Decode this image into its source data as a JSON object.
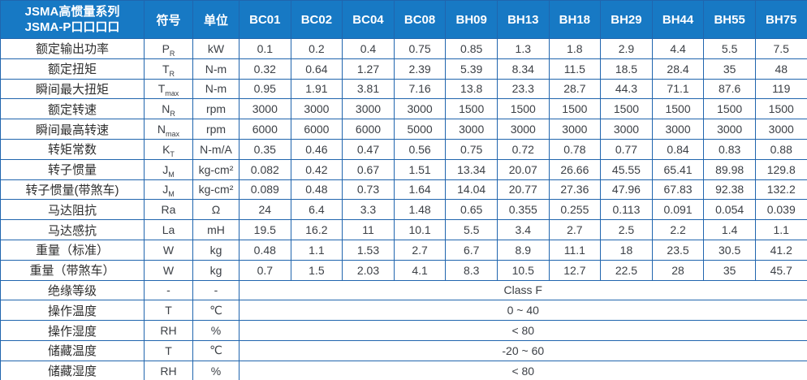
{
  "header": {
    "title_line1": "JSMA高惯量系列",
    "title_line2": "JSMA-P口口口口",
    "symbol_col": "符号",
    "unit_col": "单位",
    "models": [
      "BC01",
      "BC02",
      "BC04",
      "BC08",
      "BH09",
      "BH13",
      "BH18",
      "BH29",
      "BH44",
      "BH55",
      "BH75"
    ]
  },
  "rows": [
    {
      "label": "额定输出功率",
      "sym": "P",
      "sub": "R",
      "unit": "kW",
      "values": [
        "0.1",
        "0.2",
        "0.4",
        "0.75",
        "0.85",
        "1.3",
        "1.8",
        "2.9",
        "4.4",
        "5.5",
        "7.5"
      ]
    },
    {
      "label": "额定扭矩",
      "sym": "T",
      "sub": "R",
      "unit": "N-m",
      "values": [
        "0.32",
        "0.64",
        "1.27",
        "2.39",
        "5.39",
        "8.34",
        "11.5",
        "18.5",
        "28.4",
        "35",
        "48"
      ]
    },
    {
      "label": "瞬间最大扭矩",
      "sym": "T",
      "sub": "max",
      "unit": "N-m",
      "values": [
        "0.95",
        "1.91",
        "3.81",
        "7.16",
        "13.8",
        "23.3",
        "28.7",
        "44.3",
        "71.1",
        "87.6",
        "119"
      ]
    },
    {
      "label": "额定转速",
      "sym": "N",
      "sub": "R",
      "unit": "rpm",
      "values": [
        "3000",
        "3000",
        "3000",
        "3000",
        "1500",
        "1500",
        "1500",
        "1500",
        "1500",
        "1500",
        "1500"
      ]
    },
    {
      "label": "瞬间最高转速",
      "sym": "N",
      "sub": "max",
      "unit": "rpm",
      "values": [
        "6000",
        "6000",
        "6000",
        "5000",
        "3000",
        "3000",
        "3000",
        "3000",
        "3000",
        "3000",
        "3000"
      ]
    },
    {
      "label": "转矩常数",
      "sym": "K",
      "sub": "T",
      "unit": "N-m/A",
      "values": [
        "0.35",
        "0.46",
        "0.47",
        "0.56",
        "0.75",
        "0.72",
        "0.78",
        "0.77",
        "0.84",
        "0.83",
        "0.88"
      ]
    },
    {
      "label": "转子惯量",
      "sym": "J",
      "sub": "M",
      "unit": "kg-cm²",
      "values": [
        "0.082",
        "0.42",
        "0.67",
        "1.51",
        "13.34",
        "20.07",
        "26.66",
        "45.55",
        "65.41",
        "89.98",
        "129.8"
      ]
    },
    {
      "label": "转子惯量(带煞车)",
      "sym": "J",
      "sub": "M",
      "unit": "kg-cm²",
      "values": [
        "0.089",
        "0.48",
        "0.73",
        "1.64",
        "14.04",
        "20.77",
        "27.36",
        "47.96",
        "67.83",
        "92.38",
        "132.2"
      ]
    },
    {
      "label": "马达阻抗",
      "sym": "Ra",
      "sub": "",
      "unit": "Ω",
      "values": [
        "24",
        "6.4",
        "3.3",
        "1.48",
        "0.65",
        "0.355",
        "0.255",
        "0.113",
        "0.091",
        "0.054",
        "0.039"
      ]
    },
    {
      "label": "马达感抗",
      "sym": "La",
      "sub": "",
      "unit": "mH",
      "values": [
        "19.5",
        "16.2",
        "11",
        "10.1",
        "5.5",
        "3.4",
        "2.7",
        "2.5",
        "2.2",
        "1.4",
        "1.1"
      ]
    },
    {
      "label": "重量（标准）",
      "sym": "W",
      "sub": "",
      "unit": "kg",
      "values": [
        "0.48",
        "1.1",
        "1.53",
        "2.7",
        "6.7",
        "8.9",
        "11.1",
        "18",
        "23.5",
        "30.5",
        "41.2"
      ]
    },
    {
      "label": "重量（带煞车）",
      "sym": "W",
      "sub": "",
      "unit": "kg",
      "values": [
        "0.7",
        "1.5",
        "2.03",
        "4.1",
        "8.3",
        "10.5",
        "12.7",
        "22.5",
        "28",
        "35",
        "45.7"
      ]
    },
    {
      "label": "绝缘等级",
      "sym": "-",
      "sub": "",
      "unit": "-",
      "span_value": "Class F"
    },
    {
      "label": "操作温度",
      "sym": "T",
      "sub": "",
      "unit": "℃",
      "span_value": "0 ~ 40"
    },
    {
      "label": "操作湿度",
      "sym": "RH",
      "sub": "",
      "unit": "%",
      "span_value": "< 80"
    },
    {
      "label": "储藏温度",
      "sym": "T",
      "sub": "",
      "unit": "℃",
      "span_value": "-20 ~ 60"
    },
    {
      "label": "储藏湿度",
      "sym": "RH",
      "sub": "",
      "unit": "%",
      "span_value": "< 80"
    }
  ],
  "colors": {
    "header_bg": "#1779c4",
    "header_divider": "#0e5c9c",
    "grid_border": "#2065ae",
    "value_text": "#3c4046"
  }
}
